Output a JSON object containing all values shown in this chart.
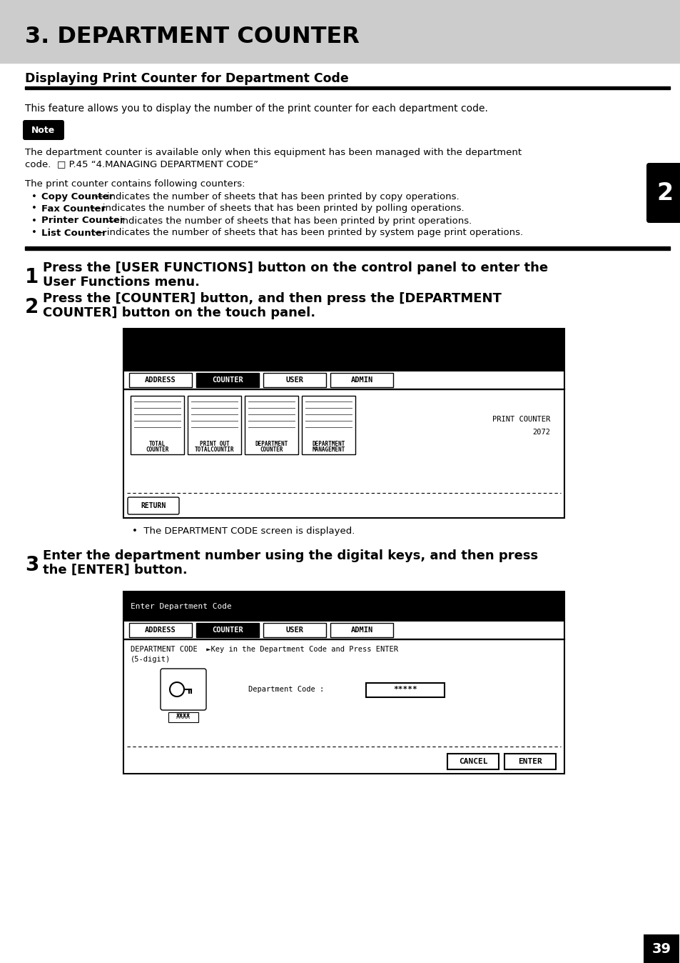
{
  "page_bg": "#ffffff",
  "header_bg": "#cccccc",
  "header_title": "3. DEPARTMENT COUNTER",
  "section_title": "Displaying Print Counter for Department Code",
  "intro_text": "This feature allows you to display the number of the print counter for each department code.",
  "note_label": "Note",
  "note_text1": "The department counter is available only when this equipment has been managed with the department",
  "note_text2": "code.  □ P.45 “4.MANAGING DEPARTMENT CODE”",
  "counters_intro": "The print counter contains following counters:",
  "counter_bullets": [
    "Copy Counter — indicates the number of sheets that has been printed by copy operations.",
    "Fax Counter — indicates the number of sheets that has been printed by polling operations.",
    "Printer Counter — indicates the number of sheets that has been printed by print operations.",
    "List Counter — indicates the number of sheets that has been printed by system page print operations."
  ],
  "counter_bold": [
    "Copy Counter",
    "Fax Counter",
    "Printer Counter",
    "List Counter"
  ],
  "step1_num": "1",
  "step1_line1": "Press the [USER FUNCTIONS] button on the control panel to enter the",
  "step1_line2": "User Functions menu.",
  "step2_num": "2",
  "step2_line1": "Press the [COUNTER] button, and then press the [DEPARTMENT",
  "step2_line2": "COUNTER] button on the touch panel.",
  "step3_num": "3",
  "step3_line1": "Enter the department number using the digital keys, and then press",
  "step3_line2": "the [ENTER] button.",
  "dept_code_note": "The DEPARTMENT CODE screen is displayed.",
  "sidebar_num": "2",
  "page_num": "39",
  "screen1_tabs": [
    "ADDRESS",
    "COUNTER",
    "USER",
    "ADMIN"
  ],
  "screen1_active_tab": 1,
  "screen1_icons": [
    {
      "label1": "TOTAL",
      "label2": "COUNTER"
    },
    {
      "label1": "PRINT OUT",
      "label2": "TOTALCOUNTIR"
    },
    {
      "label1": "DEPARTMENT",
      "label2": "COUNTER"
    },
    {
      "label1": "DEPARTMENT",
      "label2": "MANAGEMENT"
    }
  ],
  "screen1_counter_label": "PRINT COUNTER",
  "screen1_counter_value": "2072",
  "screen2_header": "Enter Department Code",
  "screen2_tabs": [
    "ADDRESS",
    "COUNTER",
    "USER",
    "ADMIN"
  ],
  "screen2_active_tab": 1,
  "screen2_line1": "DEPARTMENT CODE  ►Key in the Department Code and Press ENTER",
  "screen2_line2": "(5-digit)",
  "screen2_dept_label": "Department Code :",
  "screen2_dept_value": "*****",
  "screen2_btn1": "CANCEL",
  "screen2_btn2": "ENTER"
}
